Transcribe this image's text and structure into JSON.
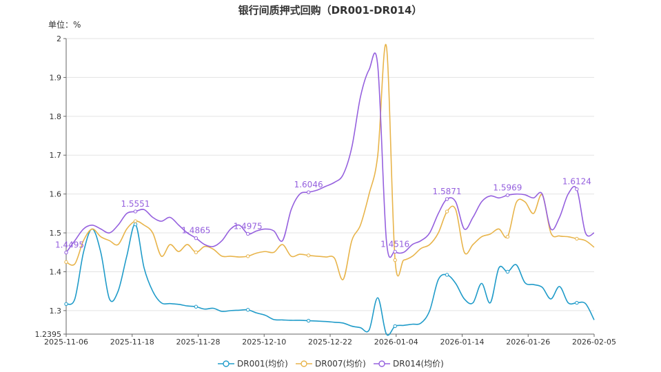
{
  "chart_data": {
    "type": "line",
    "title": "银行间质押式回购（DR001-DR014）",
    "unit_label": "单位：%",
    "ylim": [
      1.2395,
      2.0
    ],
    "y_ticks": [
      "1.2395",
      "1.3",
      "1.4",
      "1.5",
      "1.6",
      "1.7",
      "1.8",
      "1.9",
      "2"
    ],
    "x_tick_labels": [
      "2025-11-06",
      "2025-11-18",
      "2025-11-28",
      "2025-12-10",
      "2025-12-22",
      "2026-01-04",
      "2026-01-14",
      "2026-01-26",
      "2026-02-05"
    ],
    "x_count": 62,
    "legend_position": "bottom-center",
    "series": [
      {
        "name": "DR001(均价)",
        "color": "#1f9bc9",
        "values": [
          1.317,
          1.33,
          1.45,
          1.51,
          1.45,
          1.33,
          1.35,
          1.44,
          1.522,
          1.41,
          1.35,
          1.32,
          1.318,
          1.316,
          1.312,
          1.31,
          1.304,
          1.306,
          1.298,
          1.3,
          1.301,
          1.302,
          1.294,
          1.288,
          1.277,
          1.276,
          1.275,
          1.275,
          1.274,
          1.273,
          1.272,
          1.27,
          1.268,
          1.26,
          1.256,
          1.25,
          1.333,
          1.2395,
          1.26,
          1.262,
          1.265,
          1.268,
          1.3,
          1.38,
          1.392,
          1.37,
          1.33,
          1.32,
          1.37,
          1.32,
          1.41,
          1.4,
          1.418,
          1.372,
          1.367,
          1.36,
          1.33,
          1.362,
          1.32,
          1.32,
          1.318,
          1.276
        ],
        "point_labels": []
      },
      {
        "name": "DR007(均价)",
        "color": "#e8b44a",
        "values": [
          1.425,
          1.42,
          1.48,
          1.51,
          1.49,
          1.48,
          1.47,
          1.51,
          1.53,
          1.52,
          1.5,
          1.44,
          1.47,
          1.452,
          1.47,
          1.45,
          1.465,
          1.458,
          1.44,
          1.44,
          1.438,
          1.44,
          1.448,
          1.452,
          1.45,
          1.47,
          1.44,
          1.445,
          1.442,
          1.44,
          1.438,
          1.435,
          1.38,
          1.48,
          1.52,
          1.6,
          1.7,
          1.98,
          1.43,
          1.43,
          1.44,
          1.46,
          1.47,
          1.5,
          1.555,
          1.56,
          1.45,
          1.47,
          1.49,
          1.497,
          1.51,
          1.49,
          1.578,
          1.58,
          1.55,
          1.598,
          1.5,
          1.492,
          1.49,
          1.485,
          1.48,
          1.463
        ],
        "point_labels": []
      },
      {
        "name": "DR014(均价)",
        "color": "#9560de",
        "values": [
          1.4495,
          1.48,
          1.51,
          1.52,
          1.51,
          1.5,
          1.52,
          1.55,
          1.5551,
          1.56,
          1.54,
          1.53,
          1.54,
          1.52,
          1.5,
          1.4865,
          1.47,
          1.465,
          1.48,
          1.51,
          1.52,
          1.4975,
          1.505,
          1.51,
          1.505,
          1.48,
          1.56,
          1.6,
          1.6046,
          1.61,
          1.62,
          1.63,
          1.65,
          1.72,
          1.85,
          1.92,
          1.93,
          1.48,
          1.4516,
          1.45,
          1.47,
          1.48,
          1.5,
          1.55,
          1.5871,
          1.58,
          1.51,
          1.54,
          1.58,
          1.595,
          1.59,
          1.5969,
          1.6,
          1.598,
          1.59,
          1.6,
          1.51,
          1.54,
          1.6,
          1.6124,
          1.5,
          1.5
        ],
        "point_labels": [
          {
            "index": 0,
            "text": "1.4495"
          },
          {
            "index": 8,
            "text": "1.5551"
          },
          {
            "index": 15,
            "text": "1.4865"
          },
          {
            "index": 21,
            "text": "1.4975"
          },
          {
            "index": 28,
            "text": "1.6046"
          },
          {
            "index": 38,
            "text": "1.4516"
          },
          {
            "index": 44,
            "text": "1.5871"
          },
          {
            "index": 51,
            "text": "1.5969"
          },
          {
            "index": 59,
            "text": "1.6124"
          }
        ]
      }
    ]
  }
}
